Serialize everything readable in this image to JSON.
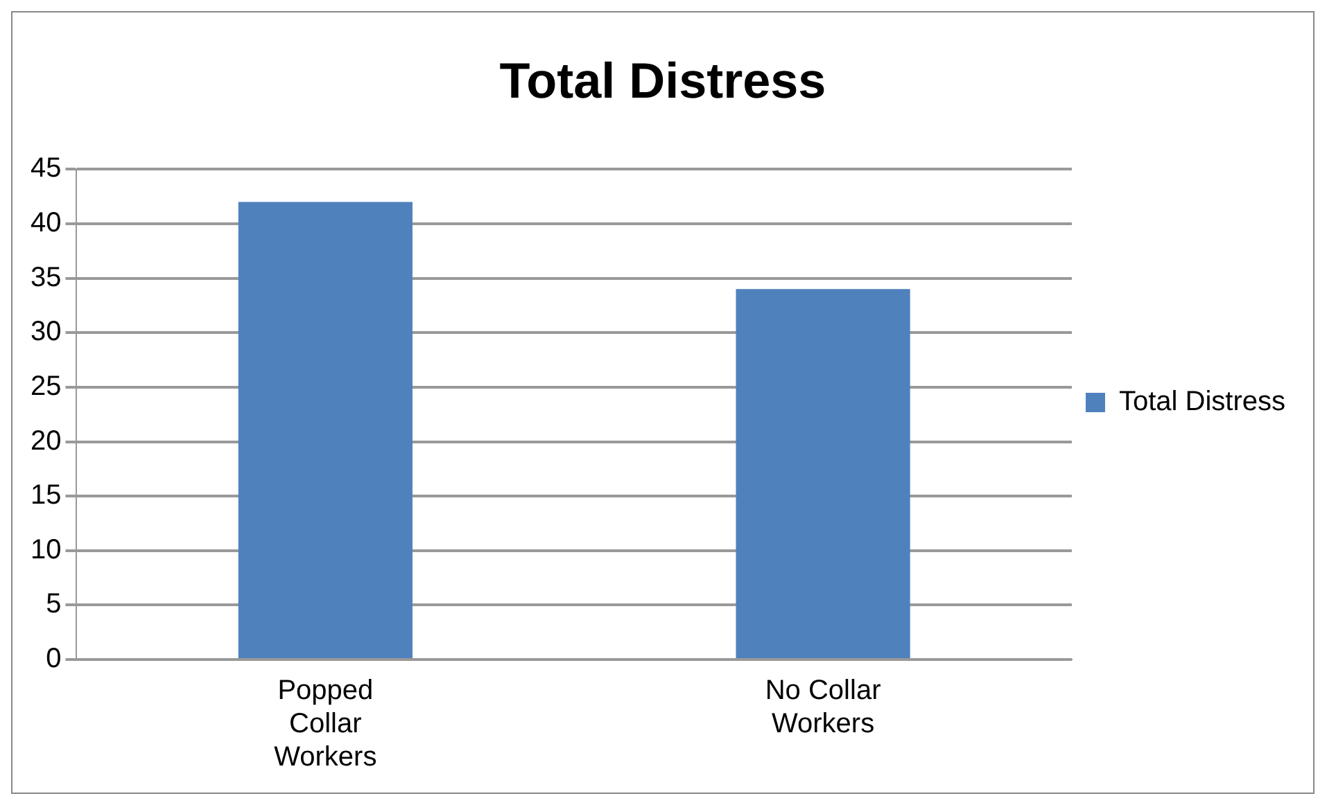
{
  "chart_data": {
    "type": "bar",
    "title": "Total Distress",
    "categories": [
      "Popped Collar Workers",
      "No Collar Workers"
    ],
    "series": [
      {
        "name": "Total Distress",
        "color": "#4f81bd",
        "values": [
          42,
          34
        ]
      }
    ],
    "ylim": [
      0,
      45
    ],
    "yticks": [
      0,
      5,
      10,
      15,
      20,
      25,
      30,
      35,
      40,
      45
    ],
    "grid": "y",
    "legend": "right"
  }
}
